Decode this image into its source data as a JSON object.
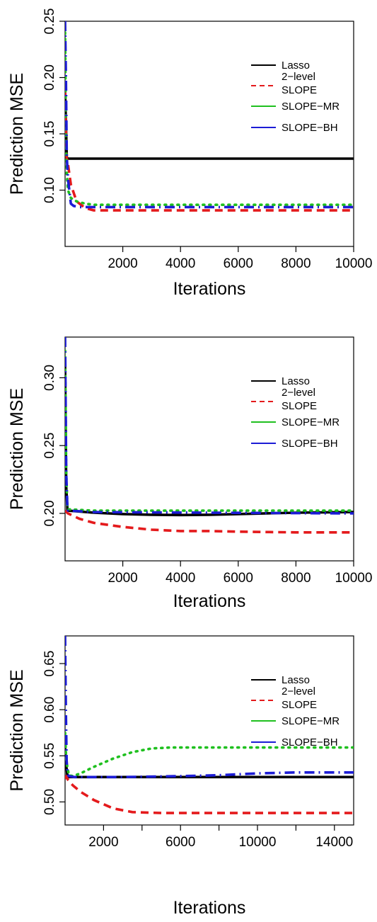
{
  "chart_data": [
    {
      "type": "line",
      "title": "",
      "xlabel": "Iterations",
      "ylabel": "Prediction MSE",
      "xlim": [
        0,
        10000
      ],
      "ylim": [
        0.05,
        0.25
      ],
      "x_ticks": [
        2000,
        4000,
        6000,
        8000,
        10000
      ],
      "y_ticks": [
        0.1,
        0.15,
        0.2,
        0.25
      ],
      "x_tick_labels": [
        "2000",
        "4000",
        "6000",
        "8000",
        "10000"
      ],
      "y_tick_labels": [
        "0.10",
        "0.15",
        "0.20",
        "0.25"
      ],
      "grid": false,
      "legend_position": "top-right",
      "series": [
        {
          "name": "Lasso",
          "color": "#000000",
          "dash": "solid",
          "x": [
            0,
            40,
            60,
            100,
            10000
          ],
          "y": [
            0.19,
            0.15,
            0.129,
            0.128,
            0.128
          ]
        },
        {
          "name": "2−level SLOPE",
          "color": "#e41a1c",
          "dash": "dashed",
          "x": [
            0,
            50,
            100,
            200,
            400,
            700,
            1000,
            1500,
            3000,
            10000
          ],
          "y": [
            0.19,
            0.13,
            0.123,
            0.105,
            0.09,
            0.084,
            0.082,
            0.082,
            0.082,
            0.082
          ]
        },
        {
          "name": "SLOPE−MR",
          "color": "#1fc01f",
          "dash": "dotted",
          "x": [
            0,
            30,
            60,
            100,
            200,
            400,
            700,
            1000,
            2000,
            10000
          ],
          "y": [
            0.24,
            0.15,
            0.115,
            0.1,
            0.093,
            0.09,
            0.088,
            0.087,
            0.087,
            0.087
          ]
        },
        {
          "name": "SLOPE−BH",
          "color": "#1c1cd6",
          "dash": "dashdot",
          "x": [
            0,
            30,
            60,
            100,
            200,
            300,
            500,
            800,
            1500,
            10000
          ],
          "y": [
            0.25,
            0.2,
            0.13,
            0.11,
            0.088,
            0.086,
            0.085,
            0.085,
            0.085,
            0.085
          ]
        }
      ]
    },
    {
      "type": "line",
      "title": "",
      "xlabel": "Iterations",
      "ylabel": "Prediction MSE",
      "xlim": [
        0,
        10000
      ],
      "ylim": [
        0.165,
        0.33
      ],
      "x_ticks": [
        2000,
        4000,
        6000,
        8000,
        10000
      ],
      "y_ticks": [
        0.2,
        0.25,
        0.3
      ],
      "x_tick_labels": [
        "2000",
        "4000",
        "6000",
        "8000",
        "10000"
      ],
      "y_tick_labels": [
        "0.20",
        "0.25",
        "0.30"
      ],
      "grid": false,
      "legend_position": "top-right",
      "series": [
        {
          "name": "Lasso",
          "color": "#000000",
          "dash": "solid",
          "x": [
            0,
            40,
            80,
            100,
            1000,
            2000,
            3000,
            4000,
            5000,
            6000,
            8000,
            10000
          ],
          "y": [
            0.31,
            0.22,
            0.203,
            0.202,
            0.2005,
            0.1995,
            0.199,
            0.1988,
            0.199,
            0.1995,
            0.2005,
            0.201
          ]
        },
        {
          "name": "2−level SLOPE",
          "color": "#e41a1c",
          "dash": "dashed",
          "x": [
            0,
            100,
            500,
            1000,
            2000,
            3000,
            4000,
            5000,
            6000,
            8000,
            10000
          ],
          "y": [
            0.202,
            0.2,
            0.196,
            0.193,
            0.19,
            0.188,
            0.187,
            0.187,
            0.1865,
            0.186,
            0.186
          ]
        },
        {
          "name": "SLOPE−MR",
          "color": "#1fc01f",
          "dash": "dotted",
          "x": [
            0,
            40,
            80,
            100,
            1000,
            10000
          ],
          "y": [
            0.32,
            0.23,
            0.204,
            0.203,
            0.202,
            0.202
          ]
        },
        {
          "name": "SLOPE−BH",
          "color": "#1c1cd6",
          "dash": "dashdot",
          "x": [
            0,
            40,
            80,
            100,
            1000,
            5000,
            10000
          ],
          "y": [
            0.33,
            0.23,
            0.204,
            0.202,
            0.201,
            0.2005,
            0.2
          ]
        }
      ]
    },
    {
      "type": "line",
      "title": "",
      "xlabel": "Iterations",
      "ylabel": "Prediction MSE",
      "xlim": [
        0,
        15000
      ],
      "ylim": [
        0.475,
        0.68
      ],
      "x_ticks": [
        2000,
        6000,
        10000,
        14000
      ],
      "y_ticks": [
        0.5,
        0.55,
        0.6,
        0.65
      ],
      "x_tick_labels": [
        "2000",
        "6000",
        "10000",
        "14000"
      ],
      "y_tick_labels": [
        "0.50",
        "0.55",
        "0.60",
        "0.65"
      ],
      "x_minor_ticks": [
        4000,
        8000,
        12000
      ],
      "grid": false,
      "legend_position": "top-right",
      "series": [
        {
          "name": "Lasso",
          "color": "#000000",
          "dash": "solid",
          "x": [
            0,
            60,
            120,
            200,
            15000
          ],
          "y": [
            0.56,
            0.54,
            0.528,
            0.527,
            0.527
          ]
        },
        {
          "name": "2−level SLOPE",
          "color": "#e41a1c",
          "dash": "dashed",
          "x": [
            0,
            60,
            150,
            400,
            800,
            1500,
            2500,
            3500,
            5000,
            7000,
            15000
          ],
          "y": [
            0.525,
            0.528,
            0.524,
            0.518,
            0.511,
            0.502,
            0.493,
            0.489,
            0.488,
            0.488,
            0.488
          ]
        },
        {
          "name": "SLOPE−MR",
          "color": "#1fc01f",
          "dash": "dotted",
          "x": [
            0,
            60,
            200,
            400,
            800,
            1500,
            2500,
            3500,
            4500,
            5500,
            7000,
            10000,
            15000
          ],
          "y": [
            0.575,
            0.545,
            0.529,
            0.528,
            0.531,
            0.538,
            0.547,
            0.554,
            0.558,
            0.559,
            0.559,
            0.559,
            0.559
          ]
        },
        {
          "name": "SLOPE−BH",
          "color": "#1c1cd6",
          "dash": "dashdot",
          "x": [
            0,
            40,
            80,
            130,
            200,
            500,
            3000,
            6000,
            8000,
            10000,
            12000,
            15000
          ],
          "y": [
            0.68,
            0.6,
            0.545,
            0.53,
            0.528,
            0.527,
            0.527,
            0.528,
            0.529,
            0.531,
            0.532,
            0.532
          ]
        }
      ]
    }
  ]
}
